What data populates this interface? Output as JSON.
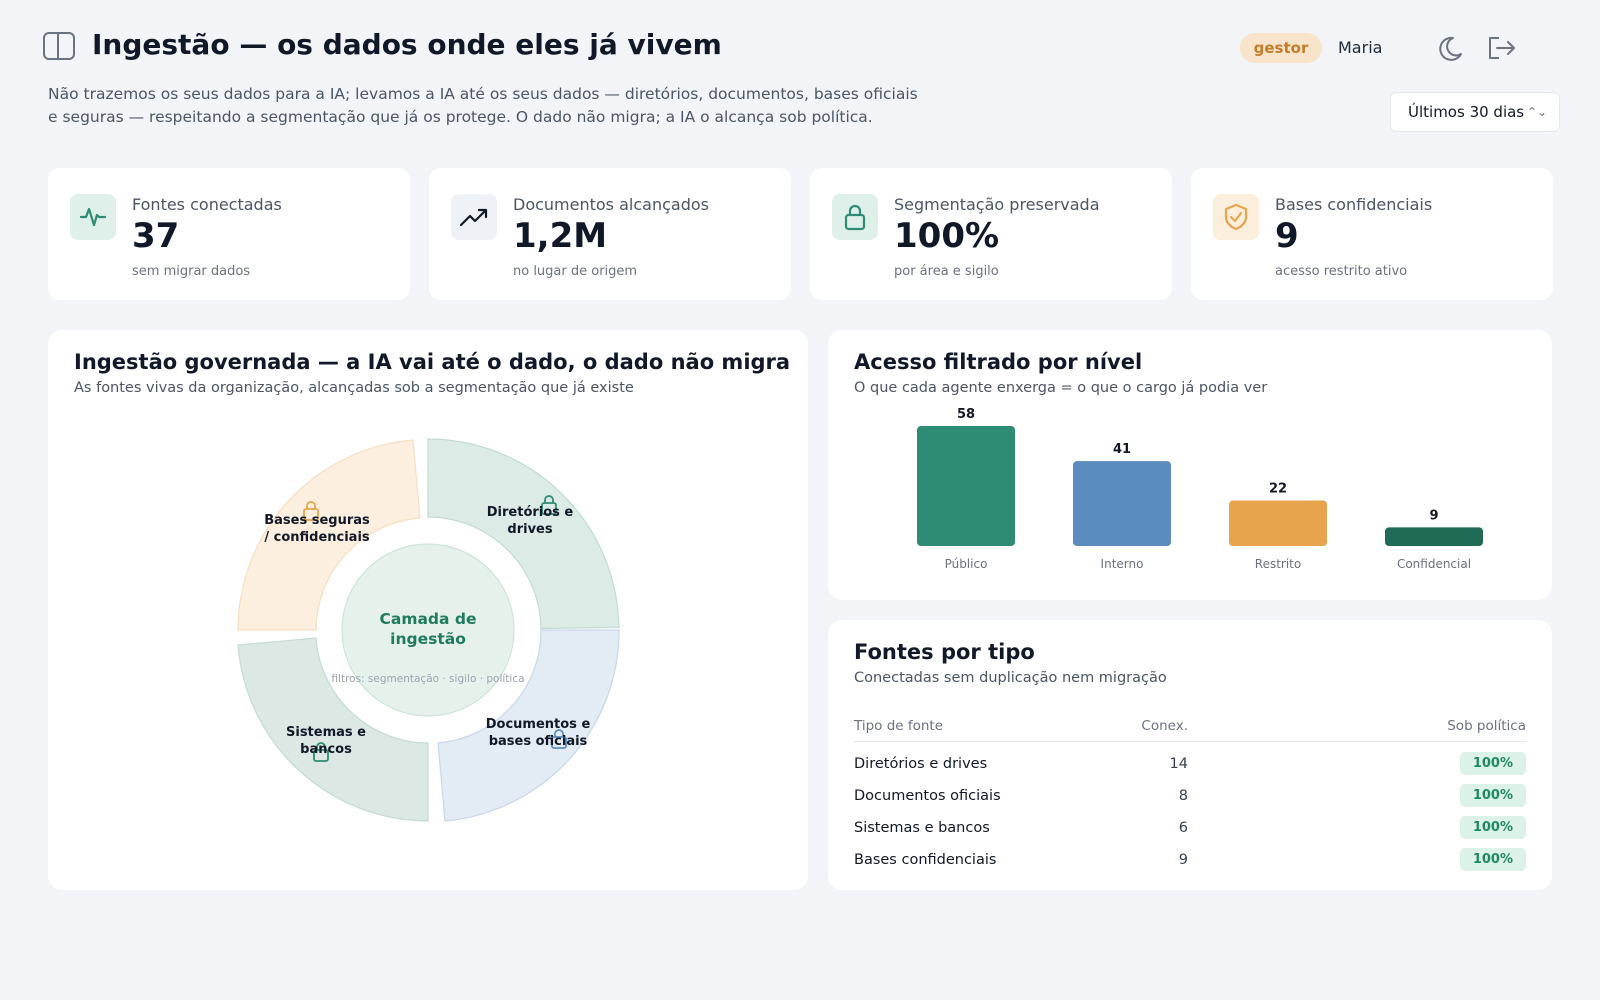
{
  "header": {
    "title": "Ingestão — os dados onde eles já vivem",
    "role_badge": "gestor",
    "user_name": "Maria",
    "subtitle_line1": "Não trazemos os seus dados para a IA; levamos a IA até os seus dados — diretórios, documentos, bases oficiais",
    "subtitle_line2": "e seguras — respeitando a segmentação que já os protege. O dado não migra; a IA o alcança sob política.",
    "period": "Últimos 30 dias"
  },
  "kpis": [
    {
      "label": "Fontes conectadas",
      "value": "37",
      "hint": "sem migrar dados",
      "icon": "activity-icon"
    },
    {
      "label": "Documentos alcançados",
      "value": "1,2M",
      "hint": "no lugar de origem",
      "icon": "trending-up-icon"
    },
    {
      "label": "Segmentação preservada",
      "value": "100%",
      "hint": "por área e sigilo",
      "icon": "lock-icon"
    },
    {
      "label": "Bases confidenciais",
      "value": "9",
      "hint": "acesso restrito ativo",
      "icon": "shield-check-icon"
    }
  ],
  "ingestion": {
    "title": "Ingestão governada — a IA vai até o dado, o dado não migra",
    "subtitle": "As fontes vivas da organização, alcançadas sob a segmentação que já existe",
    "center_line1": "Camada de",
    "center_line2": "ingestão",
    "filters": "filtros: segmentação · sigilo · política",
    "segments": [
      {
        "line1": "Diretórios e",
        "line2": "drives",
        "color": "#2e8b74"
      },
      {
        "line1": "Documentos e",
        "line2": "bases oficiais",
        "color": "#5b8cc0"
      },
      {
        "line1": "Sistemas e",
        "line2": "bancos",
        "color": "#2e8b74"
      },
      {
        "line1": "Bases seguras",
        "line2": "/ confidenciais",
        "color": "#e8a44c"
      }
    ]
  },
  "access": {
    "title": "Acesso filtrado por nível",
    "subtitle": "O que cada agente enxerga = o que o cargo já podia ver"
  },
  "chart_data": {
    "type": "bar",
    "categories": [
      "Público",
      "Interno",
      "Restrito",
      "Confidencial"
    ],
    "values": [
      58,
      41,
      22,
      9
    ],
    "colors": [
      "#2e8b74",
      "#5b8cc0",
      "#e8a44c",
      "#1f6b55"
    ],
    "ylim": [
      0,
      58
    ]
  },
  "sources": {
    "title": "Fontes por tipo",
    "subtitle": "Conectadas sem duplicação nem migração",
    "columns": [
      "Tipo de fonte",
      "Conex.",
      "Sob política"
    ],
    "rows": [
      {
        "type": "Diretórios e drives",
        "conn": "14",
        "policy": "100%"
      },
      {
        "type": "Documentos oficiais",
        "conn": "8",
        "policy": "100%"
      },
      {
        "type": "Sistemas e bancos",
        "conn": "6",
        "policy": "100%"
      },
      {
        "type": "Bases confidenciais",
        "conn": "9",
        "policy": "100%"
      }
    ]
  }
}
